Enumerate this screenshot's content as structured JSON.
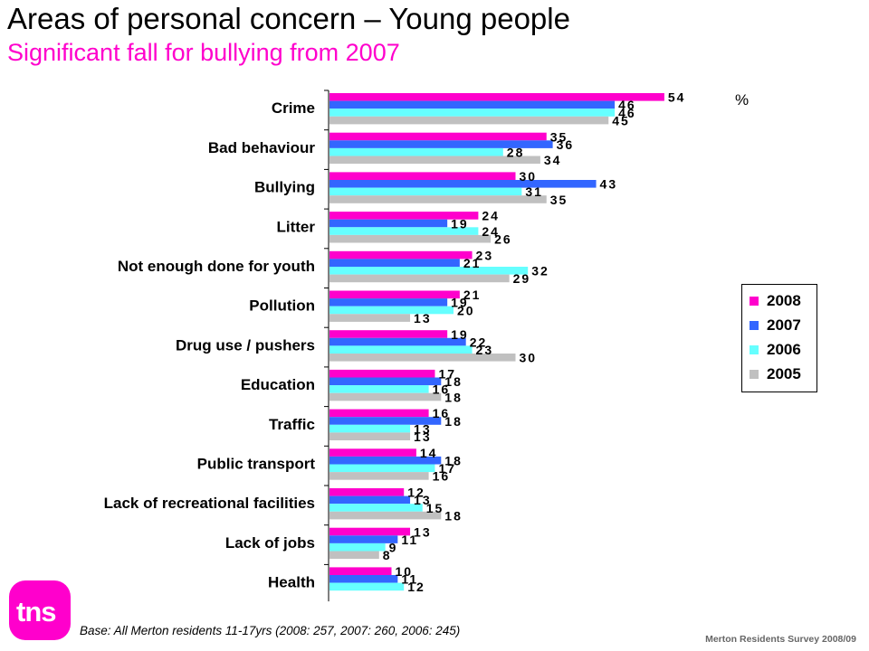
{
  "title": "Areas of personal concern – Young people",
  "subtitle": "Significant fall for bullying from 2007",
  "colors": {
    "title": "#000000",
    "subtitle": "#ff00cc",
    "logo": "#ff00cc"
  },
  "logo_text": "tns",
  "footnote": "Base:  All Merton residents 11-17yrs (2008: 257, 2007: 260, 2006: 245)",
  "credit": "Merton Residents Survey 2008/09",
  "chart_data": {
    "type": "bar",
    "orientation": "horizontal",
    "unit_label": "%",
    "categories": [
      "Crime",
      "Bad behaviour",
      "Bullying",
      "Litter",
      "Not enough done for youth",
      "Pollution",
      "Drug use / pushers",
      "Education",
      "Traffic",
      "Public transport",
      "Lack of recreational facilities",
      "Lack of jobs",
      "Health"
    ],
    "series": [
      {
        "name": "2008",
        "color": "#ff00cc",
        "values": [
          54,
          35,
          30,
          24,
          23,
          21,
          19,
          17,
          16,
          14,
          12,
          13,
          10
        ]
      },
      {
        "name": "2007",
        "color": "#3366ff",
        "values": [
          46,
          36,
          43,
          19,
          21,
          19,
          22,
          18,
          18,
          18,
          13,
          11,
          11
        ]
      },
      {
        "name": "2006",
        "color": "#66ffff",
        "values": [
          46,
          28,
          31,
          24,
          32,
          20,
          23,
          16,
          13,
          17,
          15,
          9,
          12
        ]
      },
      {
        "name": "2005",
        "color": "#c0c0c0",
        "values": [
          45,
          34,
          35,
          26,
          29,
          13,
          30,
          18,
          13,
          16,
          18,
          8,
          null
        ]
      }
    ],
    "xlim": [
      0,
      54
    ],
    "legend_position": "right",
    "grid": false
  }
}
